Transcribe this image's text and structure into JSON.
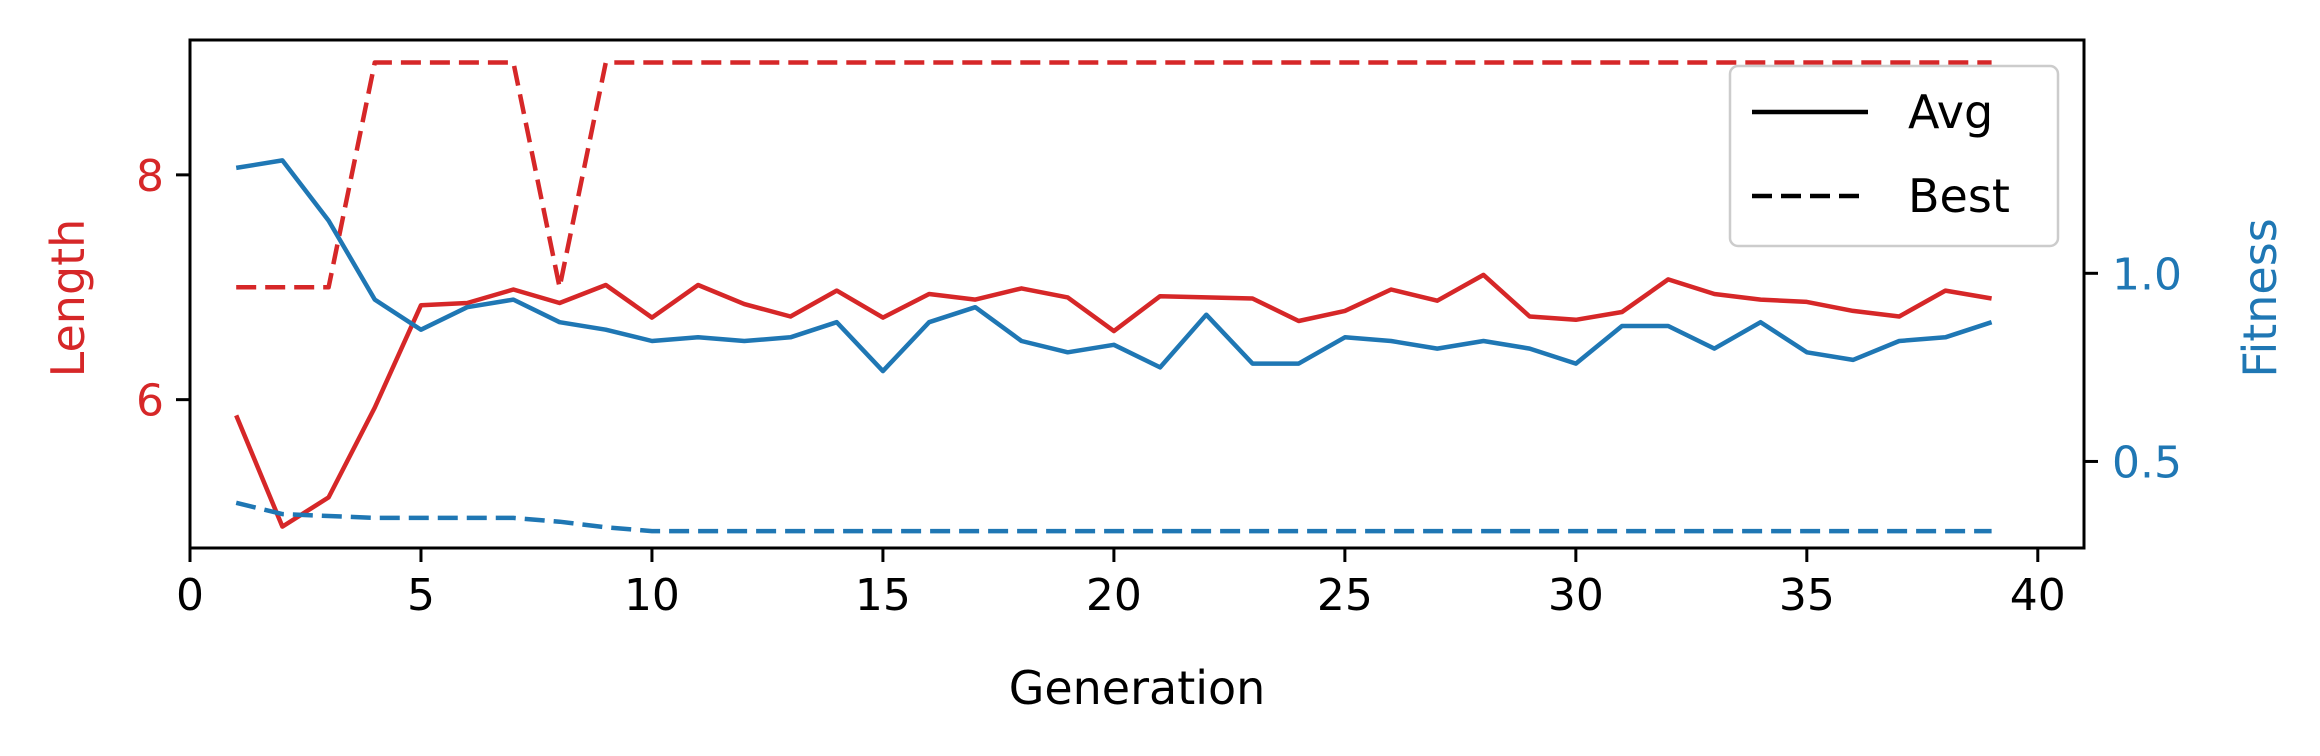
{
  "chart_data": {
    "type": "line",
    "xlabel": "Generation",
    "ylabel_left": "Length",
    "ylabel_right": "Fitness",
    "xlim": [
      0,
      41
    ],
    "ylim_left": [
      4.68,
      9.2
    ],
    "ylim_right": [
      0.27,
      1.62
    ],
    "x_ticks": [
      0,
      5,
      10,
      15,
      20,
      25,
      30,
      35,
      40
    ],
    "x_tick_labels": [
      "0",
      "5",
      "10",
      "15",
      "20",
      "25",
      "30",
      "35",
      "40"
    ],
    "y_left_ticks": [
      6,
      8
    ],
    "y_left_tick_labels": [
      "6",
      "8"
    ],
    "y_right_ticks": [
      0.5,
      1.0
    ],
    "y_right_tick_labels": [
      "0.5",
      "1.0"
    ],
    "legend": [
      {
        "label": "Avg",
        "style": "solid"
      },
      {
        "label": "Best",
        "style": "dashed"
      }
    ],
    "legend_position": "upper-right",
    "colors": {
      "length": "#d62728",
      "fitness": "#1f77b4",
      "legend": "#000000"
    },
    "x": [
      1,
      2,
      3,
      4,
      5,
      6,
      7,
      8,
      9,
      10,
      11,
      12,
      13,
      14,
      15,
      16,
      17,
      18,
      19,
      20,
      21,
      22,
      23,
      24,
      25,
      26,
      27,
      28,
      29,
      30,
      31,
      32,
      33,
      34,
      35,
      36,
      37,
      38,
      39
    ],
    "series": [
      {
        "name": "Length Avg",
        "axis": "left",
        "style": "solid",
        "color": "#d62728",
        "values": [
          5.86,
          4.87,
          5.13,
          5.93,
          6.84,
          6.86,
          6.98,
          6.86,
          7.02,
          6.73,
          7.02,
          6.85,
          6.74,
          6.97,
          6.73,
          6.94,
          6.89,
          6.99,
          6.91,
          6.61,
          6.92,
          6.91,
          6.9,
          6.7,
          6.79,
          6.98,
          6.88,
          7.11,
          6.74,
          6.71,
          6.78,
          7.07,
          6.94,
          6.89,
          6.87,
          6.79,
          6.74,
          6.97,
          6.9
        ]
      },
      {
        "name": "Length Best",
        "axis": "left",
        "style": "dashed",
        "color": "#d62728",
        "values": [
          7,
          7,
          7,
          9,
          9,
          9,
          9,
          7,
          9,
          9,
          9,
          9,
          9,
          9,
          9,
          9,
          9,
          9,
          9,
          9,
          9,
          9,
          9,
          9,
          9,
          9,
          9,
          9,
          9,
          9,
          9,
          9,
          9,
          9,
          9,
          9,
          9,
          9,
          9
        ]
      },
      {
        "name": "Fitness Avg",
        "axis": "right",
        "style": "solid",
        "color": "#1f77b4",
        "values": [
          1.28,
          1.3,
          1.14,
          0.93,
          0.85,
          0.91,
          0.93,
          0.87,
          0.85,
          0.82,
          0.83,
          0.82,
          0.83,
          0.87,
          0.74,
          0.87,
          0.91,
          0.82,
          0.79,
          0.81,
          0.75,
          0.89,
          0.76,
          0.76,
          0.83,
          0.82,
          0.8,
          0.82,
          0.8,
          0.76,
          0.86,
          0.86,
          0.8,
          0.87,
          0.79,
          0.77,
          0.82,
          0.83,
          0.87
        ]
      },
      {
        "name": "Fitness Best",
        "axis": "right",
        "style": "dashed",
        "color": "#1f77b4",
        "values": [
          0.39,
          0.36,
          0.355,
          0.35,
          0.35,
          0.35,
          0.35,
          0.34,
          0.325,
          0.315,
          0.315,
          0.315,
          0.315,
          0.315,
          0.315,
          0.315,
          0.315,
          0.315,
          0.315,
          0.315,
          0.315,
          0.315,
          0.315,
          0.315,
          0.315,
          0.315,
          0.315,
          0.315,
          0.315,
          0.315,
          0.315,
          0.315,
          0.315,
          0.315,
          0.315,
          0.315,
          0.315,
          0.315,
          0.315
        ]
      }
    ]
  }
}
